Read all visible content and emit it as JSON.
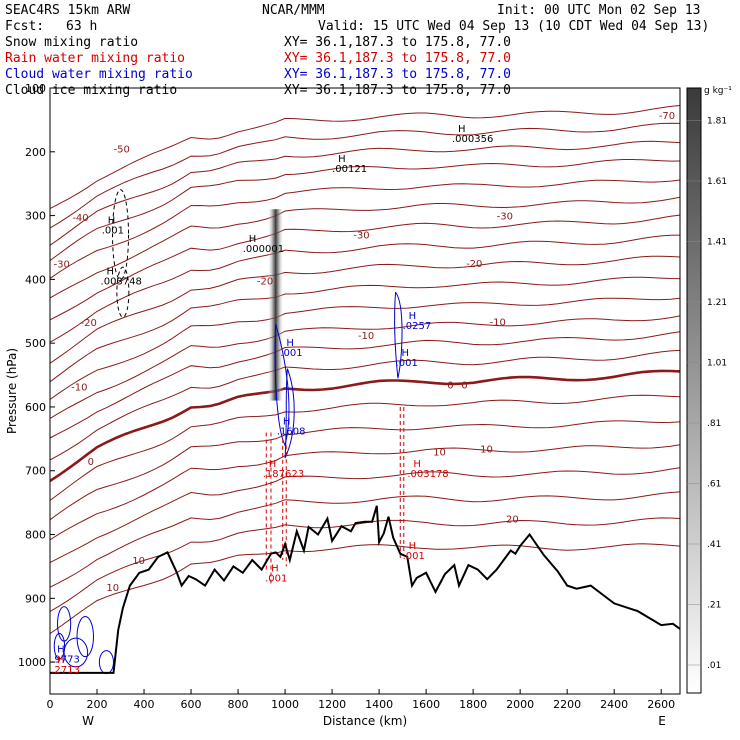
{
  "header": {
    "model": "SEAC4RS 15km ARW",
    "center": "NCAR/MMM",
    "init": "Init: 00 UTC Mon 02 Sep 13",
    "fcst_label": "Fcst:",
    "fcst_value": "63 h",
    "valid": "Valid: 15 UTC Wed 04 Sep 13 (10 CDT Wed 04 Sep 13)",
    "fields": [
      {
        "name": "Snow mixing ratio",
        "xy": "XY=  36.1,187.3 to 175.8, 77.0",
        "color": "#000000"
      },
      {
        "name": "Rain water mixing ratio",
        "xy": "XY=  36.1,187.3 to 175.8, 77.0",
        "color": "#d40000"
      },
      {
        "name": "Cloud water mixing ratio",
        "xy": "XY=  36.1,187.3 to 175.8, 77.0",
        "color": "#0000cc"
      },
      {
        "name": "Cloud ice mixing ratio",
        "xy": "XY=  36.1,187.3 to 175.8, 77.0",
        "color": "#000000"
      }
    ]
  },
  "chart_data": {
    "type": "cross-section",
    "xlabel": "Distance (km)",
    "ylabel": "Pressure (hPa)",
    "xlim": [
      0,
      2680
    ],
    "ylim": [
      1050,
      100
    ],
    "x_ticks": [
      0,
      200,
      400,
      600,
      800,
      1000,
      1200,
      1400,
      1600,
      1800,
      2000,
      2200,
      2400,
      2600
    ],
    "y_ticks": [
      100,
      200,
      300,
      400,
      500,
      600,
      700,
      800,
      900,
      1000
    ],
    "x_end_labels": {
      "left": "W",
      "right": "E"
    },
    "colorbar": {
      "unit": "g kg⁻¹",
      "levels": [
        ".01",
        ".21",
        ".41",
        ".61",
        ".81",
        "1.01",
        "1.21",
        "1.41",
        "1.61",
        "1.81"
      ]
    },
    "temperature_contours": [
      {
        "label": "-70",
        "x": 2590,
        "p": 142
      },
      {
        "label": "-50",
        "x": 270,
        "p": 195
      },
      {
        "label": "-40",
        "x": 95,
        "p": 302
      },
      {
        "label": "-30",
        "x": 1290,
        "p": 330
      },
      {
        "label": "-30",
        "x": 1900,
        "p": 300
      },
      {
        "label": "-30",
        "x": 15,
        "p": 375
      },
      {
        "label": "-20",
        "x": 880,
        "p": 402
      },
      {
        "label": "-20",
        "x": 1770,
        "p": 374
      },
      {
        "label": "-20",
        "x": 130,
        "p": 467
      },
      {
        "label": "-10",
        "x": 1310,
        "p": 487
      },
      {
        "label": "-10",
        "x": 1870,
        "p": 466
      },
      {
        "label": "-10",
        "x": 90,
        "p": 568
      },
      {
        "label": "0",
        "x": 1690,
        "p": 565
      },
      {
        "label": "0",
        "x": 1750,
        "p": 565
      },
      {
        "label": "0",
        "x": 160,
        "p": 685
      },
      {
        "label": "10",
        "x": 1630,
        "p": 670
      },
      {
        "label": "10",
        "x": 1830,
        "p": 665
      },
      {
        "label": "10",
        "x": 350,
        "p": 840
      },
      {
        "label": "10",
        "x": 240,
        "p": 882
      },
      {
        "label": "20",
        "x": 1940,
        "p": 775
      }
    ],
    "freezing_level": [
      [
        0,
        712
      ],
      [
        200,
        665
      ],
      [
        400,
        634
      ],
      [
        500,
        618
      ],
      [
        600,
        597
      ],
      [
        700,
        597
      ],
      [
        800,
        587
      ],
      [
        900,
        582
      ],
      [
        960,
        577
      ],
      [
        1000,
        571
      ],
      [
        1100,
        570
      ],
      [
        1200,
        568
      ],
      [
        1400,
        563
      ],
      [
        1600,
        560
      ],
      [
        1800,
        560
      ],
      [
        2000,
        557
      ],
      [
        2200,
        555
      ],
      [
        2400,
        552
      ],
      [
        2600,
        547
      ],
      [
        2680,
        545
      ]
    ],
    "terrain": [
      [
        0,
        1017
      ],
      [
        270,
        1017
      ],
      [
        290,
        950
      ],
      [
        310,
        915
      ],
      [
        340,
        880
      ],
      [
        380,
        860
      ],
      [
        420,
        855
      ],
      [
        460,
        835
      ],
      [
        500,
        828
      ],
      [
        540,
        860
      ],
      [
        560,
        880
      ],
      [
        590,
        865
      ],
      [
        620,
        870
      ],
      [
        660,
        880
      ],
      [
        700,
        855
      ],
      [
        740,
        872
      ],
      [
        780,
        850
      ],
      [
        820,
        860
      ],
      [
        860,
        840
      ],
      [
        900,
        855
      ],
      [
        940,
        830
      ],
      [
        960,
        828
      ],
      [
        980,
        835
      ],
      [
        1000,
        815
      ],
      [
        1020,
        840
      ],
      [
        1050,
        795
      ],
      [
        1080,
        825
      ],
      [
        1100,
        788
      ],
      [
        1140,
        800
      ],
      [
        1180,
        775
      ],
      [
        1200,
        810
      ],
      [
        1240,
        787
      ],
      [
        1280,
        795
      ],
      [
        1300,
        782
      ],
      [
        1340,
        780
      ],
      [
        1370,
        780
      ],
      [
        1390,
        755
      ],
      [
        1400,
        812
      ],
      [
        1420,
        798
      ],
      [
        1440,
        772
      ],
      [
        1460,
        805
      ],
      [
        1490,
        830
      ],
      [
        1520,
        835
      ],
      [
        1540,
        880
      ],
      [
        1560,
        868
      ],
      [
        1600,
        860
      ],
      [
        1640,
        890
      ],
      [
        1680,
        862
      ],
      [
        1720,
        848
      ],
      [
        1740,
        880
      ],
      [
        1780,
        848
      ],
      [
        1820,
        855
      ],
      [
        1860,
        870
      ],
      [
        1900,
        855
      ],
      [
        1960,
        825
      ],
      [
        1980,
        830
      ],
      [
        2000,
        818
      ],
      [
        2040,
        800
      ],
      [
        2100,
        832
      ],
      [
        2160,
        858
      ],
      [
        2200,
        880
      ],
      [
        2240,
        885
      ],
      [
        2300,
        880
      ],
      [
        2400,
        908
      ],
      [
        2500,
        920
      ],
      [
        2600,
        942
      ],
      [
        2650,
        940
      ],
      [
        2680,
        948
      ]
    ],
    "max_labels": [
      {
        "text": ".000356",
        "x": 1710,
        "p": 185,
        "color": "#000000"
      },
      {
        "text": ".00121",
        "x": 1200,
        "p": 232,
        "color": "#000000"
      },
      {
        "text": ".001",
        "x": 220,
        "p": 328,
        "color": "#000000"
      },
      {
        "text": ".003748",
        "x": 215,
        "p": 408,
        "color": "#000000"
      },
      {
        "text": ".000001",
        "x": 820,
        "p": 357,
        "color": "#000000"
      },
      {
        "text": ".0257",
        "x": 1500,
        "p": 478,
        "color": "#0000cc"
      },
      {
        "text": ".001",
        "x": 1470,
        "p": 536,
        "color": "#0000cc"
      },
      {
        "text": ".001",
        "x": 980,
        "p": 520,
        "color": "#0000cc"
      },
      {
        "text": ".1608",
        "x": 965,
        "p": 643,
        "color": "#0000cc"
      },
      {
        "text": ".187623",
        "x": 905,
        "p": 710,
        "color": "#d40000"
      },
      {
        "text": ".003178",
        "x": 1520,
        "p": 710,
        "color": "#d40000"
      },
      {
        "text": ".001",
        "x": 1500,
        "p": 838,
        "color": "#d40000"
      },
      {
        "text": ".001",
        "x": 915,
        "p": 874,
        "color": "#d40000"
      },
      {
        "text": ".9773",
        "x": 5,
        "p": 1001,
        "color": "#0000cc"
      },
      {
        "text": ".2713",
        "x": 5,
        "p": 1017,
        "color": "#d40000"
      }
    ],
    "snow_shading": {
      "x": 960,
      "p_top": 290,
      "p_bottom": 590
    }
  }
}
